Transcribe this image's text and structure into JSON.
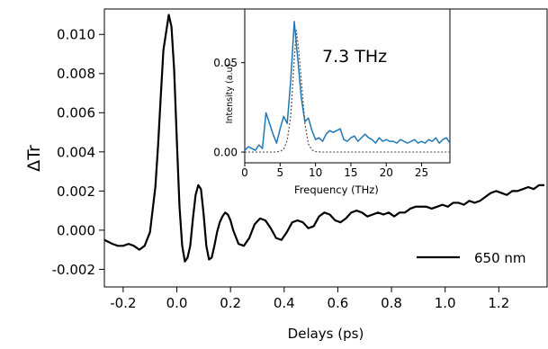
{
  "chart_data": [
    {
      "type": "line",
      "title": "",
      "xlabel": "Delays (ps)",
      "ylabel": "ΔTr",
      "xlim": [
        -0.27,
        1.38
      ],
      "ylim": [
        -0.0029,
        0.0113
      ],
      "xticks": [
        -0.2,
        0.0,
        0.2,
        0.4,
        0.6,
        0.8,
        1.0,
        1.2
      ],
      "xtick_labels": [
        "-0.2",
        "0.0",
        "0.2",
        "0.4",
        "0.6",
        "0.8",
        "1.0",
        "1.2"
      ],
      "yticks": [
        -0.002,
        0.0,
        0.002,
        0.004,
        0.006,
        0.008,
        0.01
      ],
      "ytick_labels": [
        "-0.002",
        "0.000",
        "0.002",
        "0.004",
        "0.006",
        "0.008",
        "0.010"
      ],
      "grid": false,
      "legend": "lower right",
      "series": [
        {
          "name": "650 nm",
          "color": "#000000",
          "x": [
            -0.27,
            -0.24,
            -0.22,
            -0.2,
            -0.18,
            -0.16,
            -0.14,
            -0.12,
            -0.1,
            -0.08,
            -0.07,
            -0.06,
            -0.05,
            -0.04,
            -0.03,
            -0.02,
            -0.01,
            0.0,
            0.01,
            0.02,
            0.03,
            0.04,
            0.05,
            0.06,
            0.07,
            0.08,
            0.09,
            0.1,
            0.11,
            0.12,
            0.13,
            0.14,
            0.15,
            0.16,
            0.17,
            0.18,
            0.19,
            0.2,
            0.21,
            0.23,
            0.25,
            0.27,
            0.29,
            0.31,
            0.33,
            0.35,
            0.37,
            0.39,
            0.41,
            0.43,
            0.45,
            0.47,
            0.49,
            0.51,
            0.53,
            0.55,
            0.57,
            0.59,
            0.61,
            0.63,
            0.65,
            0.67,
            0.69,
            0.71,
            0.73,
            0.75,
            0.77,
            0.79,
            0.81,
            0.83,
            0.85,
            0.87,
            0.89,
            0.91,
            0.93,
            0.95,
            0.97,
            0.99,
            1.01,
            1.03,
            1.05,
            1.07,
            1.09,
            1.11,
            1.13,
            1.15,
            1.17,
            1.19,
            1.21,
            1.23,
            1.25,
            1.27,
            1.29,
            1.31,
            1.33,
            1.35,
            1.37
          ],
          "y": [
            -0.0005,
            -0.0007,
            -0.0008,
            -0.0008,
            -0.0007,
            -0.0008,
            -0.001,
            -0.0008,
            -0.0001,
            0.0022,
            0.0043,
            0.0068,
            0.0092,
            0.0101,
            0.011,
            0.0104,
            0.0082,
            0.0046,
            0.0012,
            -0.0008,
            -0.0016,
            -0.0014,
            -0.0008,
            0.0006,
            0.0018,
            0.0023,
            0.0021,
            0.0008,
            -0.0008,
            -0.0015,
            -0.0014,
            -0.0008,
            -0.0001,
            0.0004,
            0.0007,
            0.0009,
            0.0008,
            0.0005,
            0.0,
            -0.0007,
            -0.0008,
            -0.0004,
            0.0003,
            0.0006,
            0.0005,
            0.0001,
            -0.0004,
            -0.0005,
            -0.0001,
            0.0004,
            0.0005,
            0.0004,
            0.0001,
            0.0002,
            0.0007,
            0.0009,
            0.0008,
            0.0005,
            0.0004,
            0.0006,
            0.0009,
            0.001,
            0.0009,
            0.0007,
            0.0008,
            0.0009,
            0.0008,
            0.0009,
            0.0007,
            0.0009,
            0.0009,
            0.0011,
            0.0012,
            0.0012,
            0.0012,
            0.0011,
            0.0012,
            0.0013,
            0.0012,
            0.0014,
            0.0014,
            0.0013,
            0.0015,
            0.0014,
            0.0015,
            0.0017,
            0.0019,
            0.002,
            0.0019,
            0.0018,
            0.002,
            0.002,
            0.0021,
            0.0022,
            0.0021,
            0.0023,
            0.0023
          ]
        }
      ]
    },
    {
      "type": "line",
      "title": "",
      "xlabel": "Frequency (THz)",
      "ylabel": "Intensity (a.u)",
      "xlim": [
        0,
        29
      ],
      "ylim": [
        -0.006,
        0.08
      ],
      "xticks": [
        0,
        5,
        10,
        15,
        20,
        25
      ],
      "xtick_labels": [
        "0",
        "5",
        "10",
        "15",
        "20",
        "25"
      ],
      "yticks": [
        0.0,
        0.05
      ],
      "ytick_labels": [
        "0.00",
        "0.05"
      ],
      "annotation": "7.3 THz",
      "series": [
        {
          "color": "#1f77b4",
          "style": "solid",
          "x": [
            0.0,
            0.5,
            1.0,
            1.5,
            2.0,
            2.5,
            3.0,
            3.5,
            4.0,
            4.5,
            5.0,
            5.5,
            6.0,
            6.5,
            7.0,
            7.5,
            8.0,
            8.5,
            9.0,
            9.5,
            10.0,
            10.5,
            11.0,
            11.5,
            12.0,
            12.5,
            13.0,
            13.5,
            14.0,
            14.5,
            15.0,
            15.5,
            16.0,
            16.5,
            17.0,
            17.5,
            18.0,
            18.5,
            19.0,
            19.5,
            20.0,
            20.5,
            21.0,
            21.5,
            22.0,
            22.5,
            23.0,
            23.5,
            24.0,
            24.5,
            25.0,
            25.5,
            26.0,
            26.5,
            27.0,
            27.5,
            28.0,
            28.5,
            29.0
          ],
          "y": [
            0.001,
            0.003,
            0.002,
            0.001,
            0.004,
            0.002,
            0.022,
            0.016,
            0.01,
            0.005,
            0.013,
            0.02,
            0.016,
            0.04,
            0.073,
            0.052,
            0.03,
            0.017,
            0.019,
            0.012,
            0.007,
            0.008,
            0.006,
            0.01,
            0.012,
            0.011,
            0.012,
            0.013,
            0.007,
            0.006,
            0.008,
            0.009,
            0.006,
            0.008,
            0.01,
            0.008,
            0.007,
            0.005,
            0.008,
            0.006,
            0.007,
            0.006,
            0.006,
            0.005,
            0.007,
            0.006,
            0.005,
            0.006,
            0.007,
            0.005,
            0.006,
            0.005,
            0.007,
            0.006,
            0.008,
            0.005,
            0.007,
            0.008,
            0.005
          ]
        },
        {
          "color": "#555555",
          "style": "dotted",
          "x": [
            0,
            2,
            3,
            4,
            4.5,
            5,
            5.5,
            6,
            6.5,
            7,
            7.3,
            7.6,
            8,
            8.5,
            9,
            9.5,
            10,
            11,
            12,
            14,
            16,
            18,
            20,
            22,
            24,
            26,
            28,
            29
          ],
          "y": [
            0,
            0,
            0,
            0,
            0.0001,
            0.0004,
            0.0015,
            0.0065,
            0.02,
            0.052,
            0.068,
            0.058,
            0.04,
            0.016,
            0.0045,
            0.0012,
            0.0003,
            0,
            0,
            0,
            0,
            0,
            0,
            0,
            0,
            0,
            0,
            0
          ]
        }
      ]
    }
  ],
  "legend": {
    "label": "650 nm",
    "color": "#000000"
  }
}
